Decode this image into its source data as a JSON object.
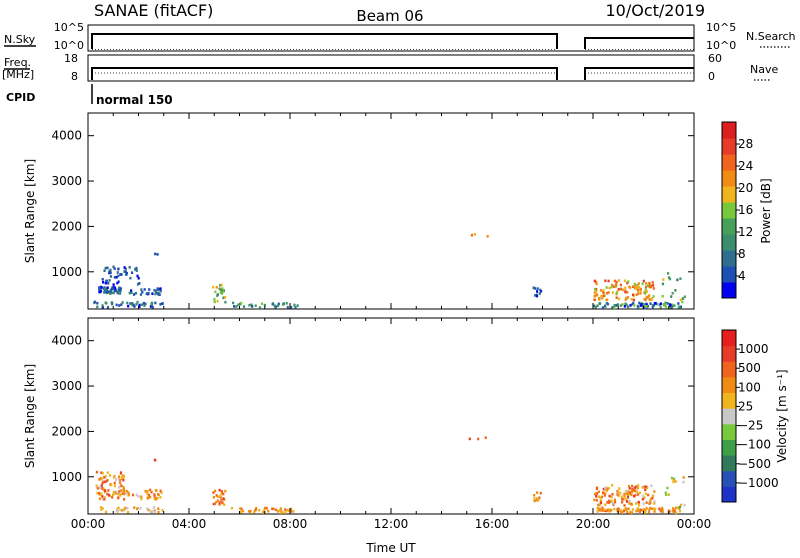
{
  "header": {
    "left": "SANAE (fitACF)",
    "center": "Beam 06",
    "right": "10/Oct/2019"
  },
  "panels": {
    "nsky": {
      "label": "N.Sky",
      "left_ticks": [
        "10^5",
        "10^0"
      ],
      "right_ticks": [
        "10^5",
        "10^0"
      ],
      "right_label": "N.Search"
    },
    "freq": {
      "label_top": "Freq.",
      "label_bottom": "[MHz]",
      "left_ticks": [
        "18",
        "8"
      ],
      "right_ticks": [
        "60",
        "0"
      ],
      "right_label": "Nave"
    },
    "cpid": {
      "label": "CPID",
      "value": "normal 150"
    }
  },
  "colors": {
    "power_scale": [
      "#0000f0",
      "#1e50b4",
      "#2e6e8e",
      "#3c8c6e",
      "#46a05a",
      "#78c83c",
      "#f0b41e",
      "#f08c14",
      "#f0641e",
      "#e63c28",
      "#dc1e1e"
    ],
    "velocity_scale": [
      "#1e32c8",
      "#2850b4",
      "#2e7a5a",
      "#3ca048",
      "#78c83c",
      "#c8c8c8",
      "#f0b41e",
      "#f08c14",
      "#f0641e",
      "#e63c28",
      "#e61e1e"
    ]
  },
  "chart_data": [
    {
      "type": "heatmap",
      "name": "power",
      "ylabel": "Slant Range [km]",
      "yticks": [
        "1000",
        "2000",
        "3000",
        "4000"
      ],
      "ylim": [
        180,
        4500
      ],
      "xlabel": "Time UT",
      "xticks": [
        "00:00",
        "04:00",
        "08:00",
        "12:00",
        "16:00",
        "20:00",
        "00:00"
      ],
      "xlim_hours": [
        0,
        24
      ],
      "colorbar": {
        "label": "Power [dB]",
        "ticks": [
          "28",
          "24",
          "20",
          "16",
          "12",
          "8",
          "4"
        ]
      },
      "clusters": [
        {
          "t": [
            0.4,
            1.3
          ],
          "r": [
            500,
            650
          ],
          "count": 55,
          "idx": [
            0,
            3
          ],
          "note": ""
        },
        {
          "t": [
            0.5,
            2.0
          ],
          "r": [
            700,
            1100
          ],
          "count": 45,
          "idx": [
            0,
            2
          ]
        },
        {
          "t": [
            1.5,
            2.9
          ],
          "r": [
            480,
            620
          ],
          "count": 30,
          "idx": [
            0,
            3
          ]
        },
        {
          "t": [
            0.2,
            3.0
          ],
          "r": [
            200,
            320
          ],
          "count": 40,
          "idx": [
            0,
            4
          ]
        },
        {
          "t": [
            4.9,
            5.4
          ],
          "r": [
            300,
            700
          ],
          "count": 25,
          "idx": [
            3,
            7
          ]
        },
        {
          "t": [
            5.6,
            8.3
          ],
          "r": [
            190,
            300
          ],
          "count": 30,
          "idx": [
            1,
            5
          ]
        },
        {
          "t": [
            17.6,
            17.9
          ],
          "r": [
            450,
            650
          ],
          "count": 10,
          "idx": [
            0,
            3
          ]
        },
        {
          "t": [
            20.0,
            22.4
          ],
          "r": [
            350,
            800
          ],
          "count": 120,
          "idx": [
            5,
            9
          ]
        },
        {
          "t": [
            20.0,
            23.5
          ],
          "r": [
            190,
            300
          ],
          "count": 80,
          "idx": [
            0,
            5
          ]
        },
        {
          "t": [
            22.7,
            23.6
          ],
          "r": [
            300,
            1000
          ],
          "count": 15,
          "idx": [
            2,
            6
          ]
        },
        {
          "t": [
            15.0,
            15.8
          ],
          "r": [
            1750,
            1900
          ],
          "count": 3,
          "idx": [
            6,
            8
          ]
        },
        {
          "t": [
            2.6,
            2.8
          ],
          "r": [
            1350,
            1380
          ],
          "count": 2,
          "idx": [
            0,
            1
          ]
        }
      ]
    },
    {
      "type": "heatmap",
      "name": "velocity",
      "ylabel": "Slant Range [km]",
      "yticks": [
        "1000",
        "2000",
        "3000",
        "4000"
      ],
      "ylim": [
        180,
        4500
      ],
      "xlabel": "Time UT",
      "xticks": [
        "00:00",
        "04:00",
        "08:00",
        "12:00",
        "16:00",
        "20:00",
        "00:00"
      ],
      "xlim_hours": [
        0,
        24
      ],
      "colorbar": {
        "label": "Velocity [m s⁻¹]",
        "ticks": [
          "1000",
          "500",
          "100",
          "25",
          "−25",
          "−100",
          "−500",
          "−1000"
        ]
      },
      "clusters": [
        {
          "t": [
            0.3,
            1.4
          ],
          "r": [
            480,
            1100
          ],
          "count": 80,
          "idx": [
            5,
            9
          ]
        },
        {
          "t": [
            1.2,
            2.9
          ],
          "r": [
            480,
            700
          ],
          "count": 40,
          "idx": [
            5,
            8
          ]
        },
        {
          "t": [
            0.2,
            3.0
          ],
          "r": [
            200,
            320
          ],
          "count": 30,
          "idx": [
            5,
            7
          ]
        },
        {
          "t": [
            4.9,
            5.4
          ],
          "r": [
            300,
            700
          ],
          "count": 25,
          "idx": [
            6,
            9
          ]
        },
        {
          "t": [
            5.6,
            8.3
          ],
          "r": [
            190,
            300
          ],
          "count": 35,
          "idx": [
            6,
            8
          ]
        },
        {
          "t": [
            17.6,
            17.9
          ],
          "r": [
            450,
            650
          ],
          "count": 10,
          "idx": [
            6,
            8
          ]
        },
        {
          "t": [
            20.0,
            22.4
          ],
          "r": [
            350,
            800
          ],
          "count": 120,
          "idx": [
            5,
            9
          ]
        },
        {
          "t": [
            20.0,
            23.5
          ],
          "r": [
            190,
            300
          ],
          "count": 80,
          "idx": [
            6,
            8
          ]
        },
        {
          "t": [
            22.7,
            23.6
          ],
          "r": [
            300,
            1000
          ],
          "count": 15,
          "idx": [
            3,
            7
          ]
        },
        {
          "t": [
            15.0,
            15.8
          ],
          "r": [
            1750,
            1900
          ],
          "count": 3,
          "idx": [
            8,
            10
          ]
        },
        {
          "t": [
            2.6,
            2.8
          ],
          "r": [
            1350,
            1380
          ],
          "count": 2,
          "idx": [
            8,
            9
          ]
        }
      ]
    }
  ]
}
